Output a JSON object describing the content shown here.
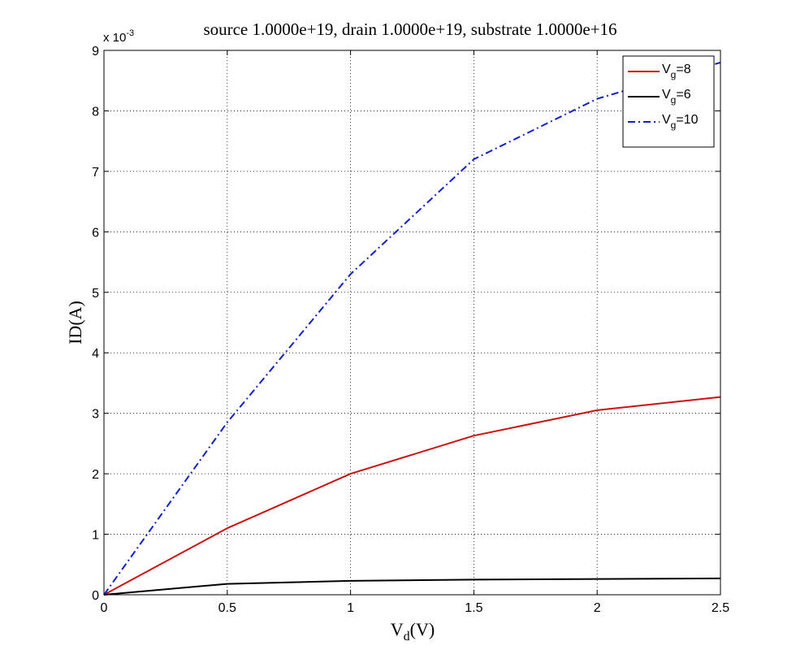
{
  "chart_data": {
    "type": "line",
    "title": "source 1.0000e+19, drain 1.0000e+19, substrate 1.0000e+16",
    "xlabel": {
      "main": "V",
      "sub": "d",
      "suffix": "(V)"
    },
    "ylabel": "ID(A)",
    "y_multiplier": {
      "prefix": "x 10",
      "exponent": "-3"
    },
    "xlim": [
      0,
      2.5
    ],
    "ylim": [
      0,
      9
    ],
    "x_ticks": [
      0,
      0.5,
      1,
      1.5,
      2,
      2.5
    ],
    "x_tick_labels": [
      "0",
      "0.5",
      "1",
      "1.5",
      "2",
      "2.5"
    ],
    "y_ticks": [
      0,
      1,
      2,
      3,
      4,
      5,
      6,
      7,
      8,
      9
    ],
    "y_tick_labels": [
      "0",
      "1",
      "2",
      "3",
      "4",
      "5",
      "6",
      "7",
      "8",
      "9"
    ],
    "grid": true,
    "legend_position": "top-right",
    "x": [
      0,
      0.5,
      1,
      1.5,
      2,
      2.5
    ],
    "series": [
      {
        "name": "V_g=8",
        "label_main": "V",
        "label_sub": "g",
        "label_suffix": "=8",
        "color": "#cc1111",
        "style": "solid",
        "values": [
          0,
          1.1,
          2.0,
          2.63,
          3.05,
          3.27
        ]
      },
      {
        "name": "V_g=6",
        "label_main": "V",
        "label_sub": "g",
        "label_suffix": "=6",
        "color": "#000000",
        "style": "solid",
        "values": [
          0,
          0.18,
          0.23,
          0.25,
          0.26,
          0.27
        ]
      },
      {
        "name": "V_g=10",
        "label_main": "V",
        "label_sub": "g",
        "label_suffix": "=10",
        "color": "#1020cc",
        "style": "dashdot",
        "values": [
          0,
          2.85,
          5.3,
          7.2,
          8.2,
          8.8
        ]
      }
    ]
  }
}
